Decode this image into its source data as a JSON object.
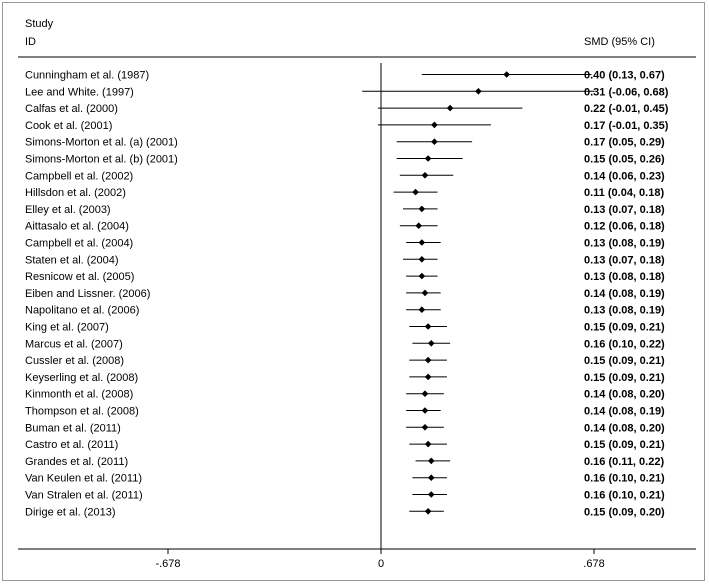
{
  "chart_data": {
    "type": "forest",
    "header": {
      "study_line1": "Study",
      "study_line2": "ID",
      "effect": "SMD (95% CI)"
    },
    "xlim": [
      -0.9,
      0.9
    ],
    "xticks": [
      "-.678",
      "0",
      ".678"
    ],
    "xtick_values": [
      -0.678,
      0,
      0.678
    ],
    "studies": [
      {
        "label": "Cunningham et al. (1987)",
        "smd": 0.4,
        "lo": 0.13,
        "hi": 0.67,
        "text": "0.40 (0.13, 0.67)"
      },
      {
        "label": "Lee and White. (1997)",
        "smd": 0.31,
        "lo": -0.06,
        "hi": 0.68,
        "text": "0.31 (-0.06, 0.68)"
      },
      {
        "label": "Calfas et al. (2000)",
        "smd": 0.22,
        "lo": -0.01,
        "hi": 0.45,
        "text": "0.22 (-0.01, 0.45)"
      },
      {
        "label": "Cook et al. (2001)",
        "smd": 0.17,
        "lo": -0.01,
        "hi": 0.35,
        "text": "0.17 (-0.01, 0.35)"
      },
      {
        "label": "Simons-Morton et al. (a) (2001)",
        "smd": 0.17,
        "lo": 0.05,
        "hi": 0.29,
        "text": "0.17 (0.05, 0.29)"
      },
      {
        "label": "Simons-Morton et al. (b) (2001)",
        "smd": 0.15,
        "lo": 0.05,
        "hi": 0.26,
        "text": "0.15 (0.05, 0.26)"
      },
      {
        "label": "Campbell et al. (2002)",
        "smd": 0.14,
        "lo": 0.06,
        "hi": 0.23,
        "text": "0.14 (0.06, 0.23)"
      },
      {
        "label": "Hillsdon et al. (2002)",
        "smd": 0.11,
        "lo": 0.04,
        "hi": 0.18,
        "text": "0.11 (0.04, 0.18)"
      },
      {
        "label": "Elley et al. (2003)",
        "smd": 0.13,
        "lo": 0.07,
        "hi": 0.18,
        "text": "0.13 (0.07, 0.18)"
      },
      {
        "label": "Aittasalo et al. (2004)",
        "smd": 0.12,
        "lo": 0.06,
        "hi": 0.18,
        "text": "0.12 (0.06, 0.18)"
      },
      {
        "label": "Campbell et al. (2004)",
        "smd": 0.13,
        "lo": 0.08,
        "hi": 0.19,
        "text": "0.13 (0.08, 0.19)"
      },
      {
        "label": "Staten et al. (2004)",
        "smd": 0.13,
        "lo": 0.07,
        "hi": 0.18,
        "text": "0.13 (0.07, 0.18)"
      },
      {
        "label": "Resnicow et al. (2005)",
        "smd": 0.13,
        "lo": 0.08,
        "hi": 0.18,
        "text": "0.13 (0.08, 0.18)"
      },
      {
        "label": "Eiben and Lissner. (2006)",
        "smd": 0.14,
        "lo": 0.08,
        "hi": 0.19,
        "text": "0.14 (0.08, 0.19)"
      },
      {
        "label": "Napolitano et al. (2006)",
        "smd": 0.13,
        "lo": 0.08,
        "hi": 0.19,
        "text": "0.13 (0.08, 0.19)"
      },
      {
        "label": "King et al. (2007)",
        "smd": 0.15,
        "lo": 0.09,
        "hi": 0.21,
        "text": "0.15 (0.09, 0.21)"
      },
      {
        "label": "Marcus et al. (2007)",
        "smd": 0.16,
        "lo": 0.1,
        "hi": 0.22,
        "text": "0.16 (0.10, 0.22)"
      },
      {
        "label": "Cussler et al. (2008)",
        "smd": 0.15,
        "lo": 0.09,
        "hi": 0.21,
        "text": "0.15 (0.09, 0.21)"
      },
      {
        "label": "Keyserling et al. (2008)",
        "smd": 0.15,
        "lo": 0.09,
        "hi": 0.21,
        "text": "0.15 (0.09, 0.21)"
      },
      {
        "label": "Kinmonth et al. (2008)",
        "smd": 0.14,
        "lo": 0.08,
        "hi": 0.2,
        "text": "0.14 (0.08, 0.20)"
      },
      {
        "label": "Thompson et al. (2008)",
        "smd": 0.14,
        "lo": 0.08,
        "hi": 0.19,
        "text": "0.14 (0.08, 0.19)"
      },
      {
        "label": "Buman et al. (2011)",
        "smd": 0.14,
        "lo": 0.08,
        "hi": 0.2,
        "text": "0.14 (0.08, 0.20)"
      },
      {
        "label": "Castro et al. (2011)",
        "smd": 0.15,
        "lo": 0.09,
        "hi": 0.21,
        "text": "0.15 (0.09, 0.21)"
      },
      {
        "label": "Grandes et al. (2011)",
        "smd": 0.16,
        "lo": 0.11,
        "hi": 0.22,
        "text": "0.16 (0.11, 0.22)"
      },
      {
        "label": "Van Keulen et al. (2011)",
        "smd": 0.16,
        "lo": 0.1,
        "hi": 0.21,
        "text": "0.16 (0.10, 0.21)"
      },
      {
        "label": "Van Stralen et al. (2011)",
        "smd": 0.16,
        "lo": 0.1,
        "hi": 0.21,
        "text": "0.16 (0.10, 0.21)"
      },
      {
        "label": "Dirige et al. (2013)",
        "smd": 0.15,
        "lo": 0.09,
        "hi": 0.2,
        "text": "0.15 (0.09, 0.20)"
      }
    ]
  }
}
